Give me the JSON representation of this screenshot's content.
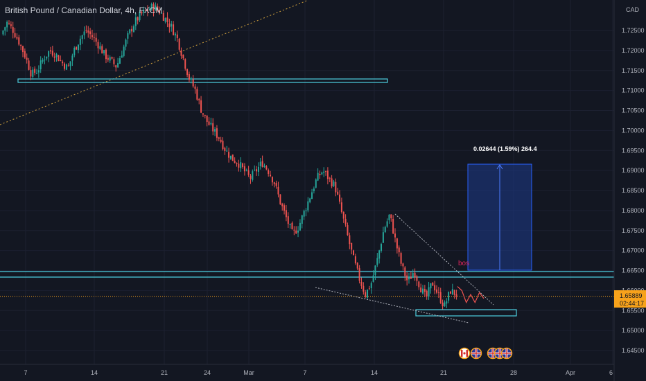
{
  "chart_title": "British Pound / Canadian Dollar, 4h, FXCM",
  "currency_label": "CAD",
  "colors": {
    "background": "#131722",
    "up": "#26a69a",
    "down": "#ef5350",
    "zone": "#4dd0e1",
    "measure_fill": "#1e3a8a",
    "measure_border": "#2962ff",
    "bos": "#e0245e",
    "price_tag": "#f7a21b",
    "trend": "#c89b3c"
  },
  "current_price": {
    "value": "1.65889",
    "countdown": "02:44:17"
  },
  "measure": {
    "label": "0.02644 (1.59%) 264.4"
  },
  "bos_label": "bos",
  "icons": [
    "canada-flag-icon",
    "uk-flag-icon",
    "uk-flag-icon",
    "uk-flag-icon",
    "uk-flag-icon"
  ],
  "chart_data": {
    "type": "candlestick",
    "title": "British Pound / Canadian Dollar, 4h, FXCM",
    "y_axis_ticks": [
      "1.72500",
      "1.72000",
      "1.71500",
      "1.71000",
      "1.70500",
      "1.70000",
      "1.69500",
      "1.69000",
      "1.68500",
      "1.68000",
      "1.67500",
      "1.67000",
      "1.66500",
      "1.66000",
      "1.65500",
      "1.65000",
      "1.64500"
    ],
    "x_axis_ticks": [
      "7",
      "14",
      "21",
      "24",
      "Mar",
      "7",
      "14",
      "21",
      "28",
      "Apr",
      "6"
    ],
    "ylim": [
      1.6435,
      1.7305
    ],
    "last_price": 1.65889,
    "series": [
      {
        "name": "GBPCAD",
        "note": "approximate price path (close values, chronological)",
        "values": [
          1.724,
          1.727,
          1.725,
          1.722,
          1.7185,
          1.714,
          1.715,
          1.718,
          1.72,
          1.719,
          1.717,
          1.7155,
          1.72,
          1.723,
          1.725,
          1.7235,
          1.7215,
          1.719,
          1.7175,
          1.716,
          1.72,
          1.724,
          1.727,
          1.729,
          1.73,
          1.731,
          1.73,
          1.728,
          1.726,
          1.723,
          1.718,
          1.713,
          1.71,
          1.705,
          1.702,
          1.7,
          1.698,
          1.695,
          1.693,
          1.692,
          1.69,
          1.688,
          1.69,
          1.692,
          1.69,
          1.687,
          1.682,
          1.678,
          1.674,
          1.676,
          1.68,
          1.684,
          1.688,
          1.69,
          1.688,
          1.686,
          1.68,
          1.674,
          1.668,
          1.663,
          1.659,
          1.662,
          1.668,
          1.675,
          1.679,
          1.672,
          1.666,
          1.662,
          1.665,
          1.661,
          1.658,
          1.662,
          1.659,
          1.656,
          1.66,
          1.659
        ]
      },
      {
        "name": "projection",
        "values": [
          1.661,
          1.66,
          1.657,
          1.659,
          1.657,
          1.6595,
          1.658
        ]
      }
    ],
    "levels": [
      {
        "name": "upper-zone",
        "value": 1.7125
      },
      {
        "name": "resistance-top",
        "value": 1.665
      },
      {
        "name": "resistance-bottom",
        "value": 1.6636
      },
      {
        "name": "demand-zone",
        "value": 1.655
      }
    ],
    "measure": {
      "from": 1.665,
      "to": 1.6914,
      "label": "0.02644 (1.59%) 264.4"
    }
  }
}
